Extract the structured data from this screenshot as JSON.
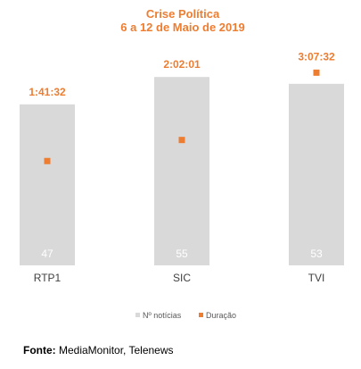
{
  "chart_data": {
    "type": "bar",
    "title": "Crise Política",
    "subtitle": "6 a 12 de Maio de 2019",
    "categories": [
      "RTP1",
      "SIC",
      "TVI"
    ],
    "series": [
      {
        "name": "Nº notícias",
        "type": "bar",
        "color": "#D9D9D9",
        "values": [
          47,
          55,
          53
        ],
        "labels": [
          "47",
          "55",
          "53"
        ]
      },
      {
        "name": "Duração",
        "type": "scatter",
        "color": "#ED7D31",
        "values_seconds": [
          6092,
          7321,
          11252
        ],
        "labels": [
          "1:41:32",
          "2:02:01",
          "3:07:32"
        ]
      }
    ],
    "bar_axis_max": 60,
    "duration_axis_max_seconds": 12000,
    "legend_position": "bottom",
    "grid": false
  },
  "source": {
    "label": "Fonte:",
    "text": "MediaMonitor, Telenews"
  }
}
